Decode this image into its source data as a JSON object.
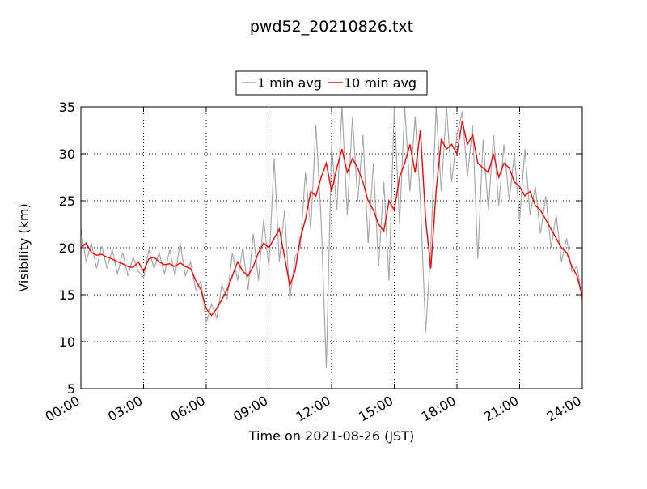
{
  "chart_data": {
    "type": "line",
    "title": "pwd52_20210826.txt",
    "x_label": "Time on 2021-08-26 (JST)",
    "y_label": "Visibility (km)",
    "x": [
      0,
      0.25,
      0.5,
      0.75,
      1,
      1.25,
      1.5,
      1.75,
      2,
      2.25,
      2.5,
      2.75,
      3,
      3.25,
      3.5,
      3.75,
      4,
      4.25,
      4.5,
      4.75,
      5,
      5.25,
      5.5,
      5.75,
      6,
      6.25,
      6.5,
      6.75,
      7,
      7.25,
      7.5,
      7.75,
      8,
      8.25,
      8.5,
      8.75,
      9,
      9.25,
      9.5,
      9.75,
      10,
      10.25,
      10.5,
      10.75,
      11,
      11.25,
      11.5,
      11.75,
      12,
      12.25,
      12.5,
      12.75,
      13,
      13.25,
      13.5,
      13.75,
      14,
      14.25,
      14.5,
      14.75,
      15,
      15.25,
      15.5,
      15.75,
      16,
      16.25,
      16.5,
      16.75,
      17,
      17.25,
      17.5,
      17.75,
      18,
      18.25,
      18.5,
      18.75,
      19,
      19.25,
      19.5,
      19.75,
      20,
      20.25,
      20.5,
      20.75,
      21,
      21.25,
      21.5,
      21.75,
      22,
      22.25,
      22.5,
      22.75,
      23,
      23.25,
      23.5,
      23.75,
      24
    ],
    "series": [
      {
        "name": "1 min avg",
        "color": "#a8a8a8",
        "values": [
          22,
          18.5,
          20.5,
          17.8,
          20.2,
          17.8,
          19.8,
          17.2,
          19.5,
          17.0,
          19.0,
          17.5,
          16.8,
          19.8,
          17.8,
          19.5,
          17.2,
          19.8,
          17.0,
          20.5,
          17.0,
          18.5,
          15.5,
          16.5,
          12.0,
          14.0,
          12.5,
          16.0,
          14.5,
          19.5,
          16.5,
          20.0,
          15.5,
          21.5,
          16.5,
          23.0,
          18.0,
          29.5,
          18.5,
          24.0,
          14.5,
          19.0,
          20.0,
          28.0,
          22.0,
          33.0,
          23.0,
          7.2,
          31.0,
          24.0,
          35,
          23.5,
          34.0,
          25.0,
          32.0,
          20.5,
          29.0,
          18.0,
          27.0,
          16.5,
          35,
          22.5,
          35,
          26.0,
          34.0,
          25.0,
          11.0,
          20.0,
          35,
          26.0,
          35,
          27.0,
          32.0,
          34.5,
          27.5,
          33.0,
          18.8,
          31.5,
          24.0,
          32.0,
          24.5,
          31.0,
          25.0,
          30.0,
          23.0,
          30.5,
          23.5,
          26.5,
          21.5,
          25.5,
          20.0,
          23.5,
          18.5,
          21.0,
          17.5,
          18.0,
          14.5
        ]
      },
      {
        "name": "10 min avg",
        "color": "#ff0000",
        "values": [
          20,
          20.5,
          19.5,
          19.2,
          19.3,
          19.0,
          18.8,
          18.5,
          18.3,
          18.0,
          17.9,
          18.5,
          17.5,
          18.8,
          19.0,
          18.5,
          18.2,
          18.3,
          18.0,
          18.4,
          18.0,
          17.8,
          16.5,
          15.5,
          13.5,
          12.8,
          13.5,
          14.5,
          15.5,
          17.0,
          18.5,
          17.5,
          17.0,
          18.0,
          19.5,
          20.5,
          20.0,
          21.0,
          22.0,
          19.0,
          16.0,
          17.5,
          21.0,
          23.0,
          26.0,
          25.5,
          27.5,
          29.0,
          26.0,
          28.5,
          30.5,
          28.0,
          29.5,
          28.5,
          27.0,
          25.0,
          24.0,
          22.5,
          21.8,
          25.0,
          24.0,
          27.5,
          29.0,
          31.0,
          28.0,
          32.5,
          23.0,
          17.8,
          26.0,
          31.5,
          30.5,
          31.0,
          30.0,
          33.5,
          31.0,
          32.0,
          29.0,
          28.5,
          28.0,
          30.0,
          27.5,
          29.0,
          28.5,
          27.0,
          26.5,
          25.5,
          26.0,
          24.5,
          24.0,
          23.0,
          22.0,
          21.0,
          20.0,
          19.5,
          18.0,
          17.0,
          14.8
        ]
      }
    ],
    "xlim": [
      0,
      24
    ],
    "xticks": [
      {
        "value": 0,
        "label": "00:00"
      },
      {
        "value": 3,
        "label": "03:00"
      },
      {
        "value": 6,
        "label": "06:00"
      },
      {
        "value": 9,
        "label": "09:00"
      },
      {
        "value": 12,
        "label": "12:00"
      },
      {
        "value": 15,
        "label": "15:00"
      },
      {
        "value": 18,
        "label": "18:00"
      },
      {
        "value": 21,
        "label": "21:00"
      },
      {
        "value": 24,
        "label": "24:00"
      }
    ],
    "ylim": [
      5,
      35
    ],
    "yticks": [
      5,
      10,
      15,
      20,
      25,
      30,
      35
    ],
    "grid": true,
    "legend": "top"
  }
}
